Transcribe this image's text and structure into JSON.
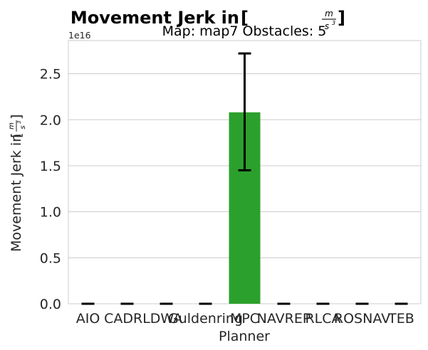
{
  "chart_data": {
    "type": "bar",
    "title": "Movement Jerk in",
    "title_unit_numerator": "m",
    "title_unit_denominator": "s",
    "title_unit_exponent": "3",
    "subtitle": "Map: map7 Obstacles: 5",
    "xlabel": "Planner",
    "ylabel": "Movement Jerk in",
    "y_offset_label": "1e16",
    "y_scale": 1e+16,
    "ylim": [
      0,
      2.86
    ],
    "yticks": [
      0.0,
      0.5,
      1.0,
      1.5,
      2.0,
      2.5
    ],
    "ytick_labels": [
      "0.0",
      "0.5",
      "1.0",
      "1.5",
      "2.0",
      "2.5"
    ],
    "grid": "horizontal",
    "categories": [
      "AIO",
      "CADRL",
      "DWA",
      "Guldenring",
      "MPC",
      "NAVREP",
      "RLCA",
      "ROSNAV",
      "TEB"
    ],
    "values": [
      0,
      0,
      0,
      0,
      2.08,
      0,
      0,
      0,
      0
    ],
    "error_low": [
      0,
      0,
      0,
      0,
      1.45,
      0,
      0,
      0,
      0
    ],
    "error_high": [
      0,
      0,
      0,
      0,
      2.72,
      0,
      0,
      0,
      0
    ],
    "bar_colors": [
      "#1f77b4",
      "#ff7f0e",
      "#d62728",
      "#9467bd",
      "#2ca02c",
      "#8c564b",
      "#e377c2",
      "#7f7f7f",
      "#bcbd22"
    ]
  }
}
